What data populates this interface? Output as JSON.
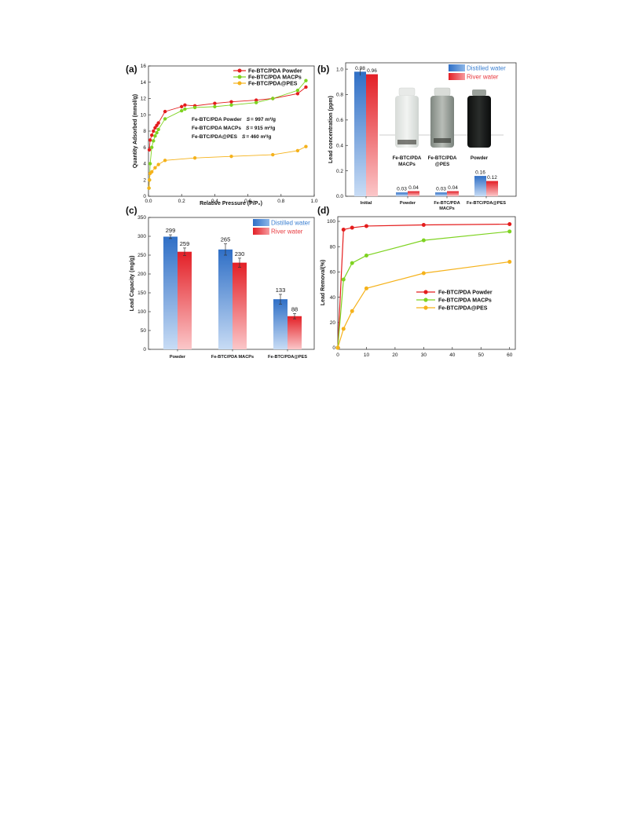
{
  "colors": {
    "red": "#e41d1d",
    "green": "#7ed321",
    "orange": "#f5b21b",
    "blue": "#3a7fd1",
    "river": "#e8393e"
  },
  "panel_a": {
    "tag": "(a)",
    "annotations": [
      {
        "name": "Fe-BTC/PDA Powder",
        "s_label": "S",
        "s_value": "= 997 m²/g"
      },
      {
        "name": "Fe-BTC/PDA MACPs",
        "s_label": "S",
        "s_value": "= 915 m²/g"
      },
      {
        "name": "Fe-BTC/PDA@PES",
        "s_label": "S",
        "s_value": "= 460 m²/g"
      }
    ]
  },
  "panel_b": {
    "tag": "(b)",
    "vial_labels": [
      {
        "line1": "Fe-BTC/PDA",
        "line2": "MACPs"
      },
      {
        "line1": "Fe-BTC/PDA",
        "line2": "@PES"
      },
      {
        "line1": "Powder",
        "line2": ""
      }
    ]
  },
  "panel_c": {
    "tag": "(c)"
  },
  "panel_d": {
    "tag": "(d)"
  },
  "chart_data": [
    {
      "panel": "a",
      "type": "scatter",
      "xlabel": "Relative Pressure (P/P₀)",
      "ylabel": "Quantity Adsorbed (mmol/g)",
      "xlim": [
        0.0,
        1.0
      ],
      "ylim": [
        0,
        16
      ],
      "xticks": [
        "0.0",
        "0.2",
        "0.4",
        "0.6",
        "0.8",
        "1.0"
      ],
      "yticks": [
        "0",
        "2",
        "4",
        "6",
        "8",
        "10",
        "12",
        "14",
        "16"
      ],
      "legend_position": "top-right",
      "series": [
        {
          "name": "Fe-BTC/PDA Powder",
          "color": "#e41d1d",
          "x": [
            0.005,
            0.01,
            0.02,
            0.03,
            0.04,
            0.05,
            0.06,
            0.1,
            0.2,
            0.22,
            0.28,
            0.4,
            0.5,
            0.65,
            0.75,
            0.9,
            0.95
          ],
          "y": [
            5.7,
            6.9,
            7.5,
            8.0,
            8.4,
            8.7,
            9.0,
            10.4,
            11.0,
            11.2,
            11.1,
            11.4,
            11.6,
            11.8,
            12.0,
            12.6,
            13.4
          ]
        },
        {
          "name": "Fe-BTC/PDA MACPs",
          "color": "#7ed321",
          "x": [
            0.003,
            0.006,
            0.01,
            0.02,
            0.03,
            0.04,
            0.05,
            0.06,
            0.1,
            0.2,
            0.22,
            0.28,
            0.4,
            0.5,
            0.65,
            0.75,
            0.9,
            0.95
          ],
          "y": [
            1.0,
            2.0,
            4.0,
            6.0,
            6.8,
            7.4,
            7.8,
            8.2,
            9.5,
            10.5,
            10.7,
            10.9,
            11.0,
            11.2,
            11.5,
            12.0,
            13.0,
            14.2
          ]
        },
        {
          "name": "Fe-BTC/PDA@PES",
          "color": "#f5b21b",
          "x": [
            0.003,
            0.006,
            0.01,
            0.02,
            0.04,
            0.06,
            0.1,
            0.28,
            0.5,
            0.75,
            0.9,
            0.95
          ],
          "y": [
            1.0,
            2.0,
            2.8,
            3.0,
            3.5,
            3.9,
            4.4,
            4.7,
            4.9,
            5.1,
            5.6,
            6.1
          ]
        }
      ]
    },
    {
      "panel": "b",
      "type": "bar",
      "ylabel": "Lead concentration (ppm)",
      "ylim": [
        0.0,
        1.05
      ],
      "yticks": [
        "0.0",
        "0.2",
        "0.4",
        "0.6",
        "0.8",
        "1.0"
      ],
      "categories": [
        "Initial",
        "Powder",
        "Fe-BTC/PDA MACPs",
        "Fe-BTC/PDA@PES"
      ],
      "legend_position": "top-right",
      "series": [
        {
          "name": "Distilled water",
          "color": "#3a7fd1",
          "values": [
            0.98,
            0.03,
            0.03,
            0.16
          ],
          "labels": [
            "0.98",
            "0.03",
            "0.03",
            "0.16"
          ]
        },
        {
          "name": "River water",
          "color": "#e8393e",
          "values": [
            0.96,
            0.04,
            0.04,
            0.12
          ],
          "labels": [
            "0.96",
            "0.04",
            "0.04",
            "0.12"
          ]
        }
      ]
    },
    {
      "panel": "c",
      "type": "bar",
      "ylabel": "Lead Capacity (mg/g)",
      "ylim": [
        0,
        350
      ],
      "yticks": [
        "0",
        "50",
        "100",
        "150",
        "200",
        "250",
        "300",
        "350"
      ],
      "categories": [
        "Powder",
        "Fe-BTC/PDA MACPs",
        "Fe-BTC/PDA@PES"
      ],
      "legend_position": "top-right",
      "series": [
        {
          "name": "Distilled water",
          "color": "#3a7fd1",
          "values": [
            299,
            265,
            133
          ],
          "errors": [
            5,
            15,
            13
          ],
          "labels": [
            "299",
            "265",
            "133"
          ]
        },
        {
          "name": "River water",
          "color": "#e8393e",
          "values": [
            259,
            230,
            88
          ],
          "errors": [
            10,
            12,
            7
          ],
          "labels": [
            "259",
            "230",
            "88"
          ]
        }
      ]
    },
    {
      "panel": "d",
      "type": "line",
      "ylabel": "Lead Removal(%)",
      "xlim": [
        0,
        62
      ],
      "ylim": [
        0,
        100
      ],
      "xticks": [
        "0",
        "10",
        "20",
        "30",
        "40",
        "50",
        "60"
      ],
      "yticks": [
        "0",
        "20",
        "40",
        "60",
        "80",
        "100"
      ],
      "legend_position": "center-right",
      "series": [
        {
          "name": "Fe-BTC/PDA Powder",
          "color": "#e41d1d",
          "x": [
            0,
            2,
            5,
            10,
            30,
            60
          ],
          "y": [
            0,
            93.5,
            95,
            96.3,
            97.2,
            97.8
          ]
        },
        {
          "name": "Fe-BTC/PDA MACPs",
          "color": "#7ed321",
          "x": [
            0,
            2,
            5,
            10,
            30,
            60
          ],
          "y": [
            0,
            54,
            67,
            73,
            85,
            92
          ]
        },
        {
          "name": "Fe-BTC/PDA@PES",
          "color": "#f5b21b",
          "x": [
            0,
            2,
            5,
            10,
            30,
            60
          ],
          "y": [
            0,
            15,
            29,
            47,
            59,
            68
          ]
        }
      ]
    }
  ]
}
